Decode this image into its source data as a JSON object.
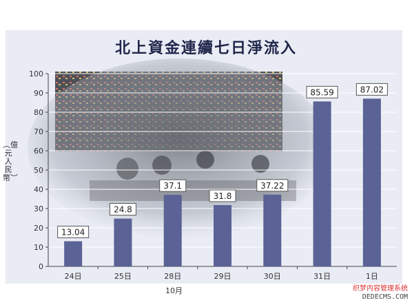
{
  "chart_data": {
    "type": "bar",
    "title": "北上資金連續七日淨流入",
    "ylabel": "︵億元人民幣︶",
    "xlabel": "10月",
    "categories": [
      "24日",
      "25日",
      "28日",
      "29日",
      "30日",
      "31日",
      "1日"
    ],
    "values": [
      13.04,
      24.8,
      37.1,
      31.8,
      37.22,
      85.59,
      87.02
    ],
    "value_labels": [
      "13.04",
      "24.8",
      "37.1",
      "31.8",
      "37.22",
      "85.59",
      "87.02"
    ],
    "yticks": [
      "0",
      "10",
      "20",
      "30",
      "40",
      "50",
      "60",
      "70",
      "80",
      "90",
      "100"
    ],
    "ylim": [
      0,
      100
    ],
    "grid": true,
    "bar_color": "#5a6296"
  },
  "watermark": {
    "line1": "织梦内容管理系统",
    "line2": "DEDECMS.COM"
  }
}
